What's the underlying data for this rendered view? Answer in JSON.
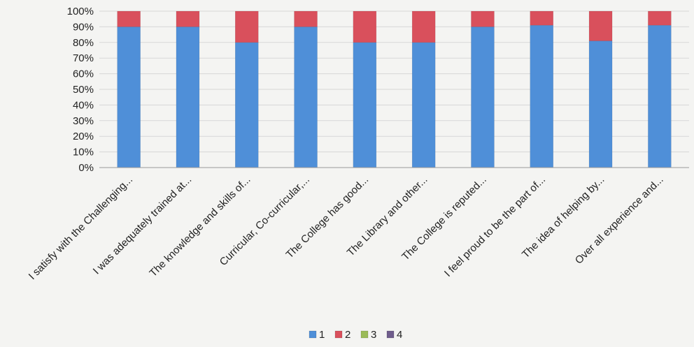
{
  "chart_data": {
    "type": "bar",
    "stacked": true,
    "percent": true,
    "categories": [
      "I satisfy with the Challenging...",
      "I was adequately trained at...",
      "The knowledge and skills of...",
      "Curricular, Co-curricular,...",
      "The College has good...",
      "The Library and other...",
      "The College is reputed...",
      "I feel proud to be the part of...",
      "The idea of helping by...",
      "Over all experience and..."
    ],
    "series": [
      {
        "name": "1",
        "color": "#4f8fd8",
        "values": [
          90,
          90,
          80,
          90,
          80,
          80,
          90,
          91,
          81,
          91
        ]
      },
      {
        "name": "2",
        "color": "#d9505c",
        "values": [
          10,
          10,
          20,
          10,
          20,
          20,
          10,
          9,
          19,
          9
        ]
      },
      {
        "name": "3",
        "color": "#9bbb59",
        "values": [
          0,
          0,
          0,
          0,
          0,
          0,
          0,
          0,
          0,
          0
        ]
      },
      {
        "name": "4",
        "color": "#6f5d8c",
        "values": [
          0,
          0,
          0,
          0,
          0,
          0,
          0,
          0,
          0,
          0
        ]
      }
    ],
    "yticks": [
      "0%",
      "10%",
      "20%",
      "30%",
      "40%",
      "50%",
      "60%",
      "70%",
      "80%",
      "90%",
      "100%"
    ],
    "ylim": [
      0,
      100
    ],
    "grid": true,
    "legend_position": "bottom"
  }
}
